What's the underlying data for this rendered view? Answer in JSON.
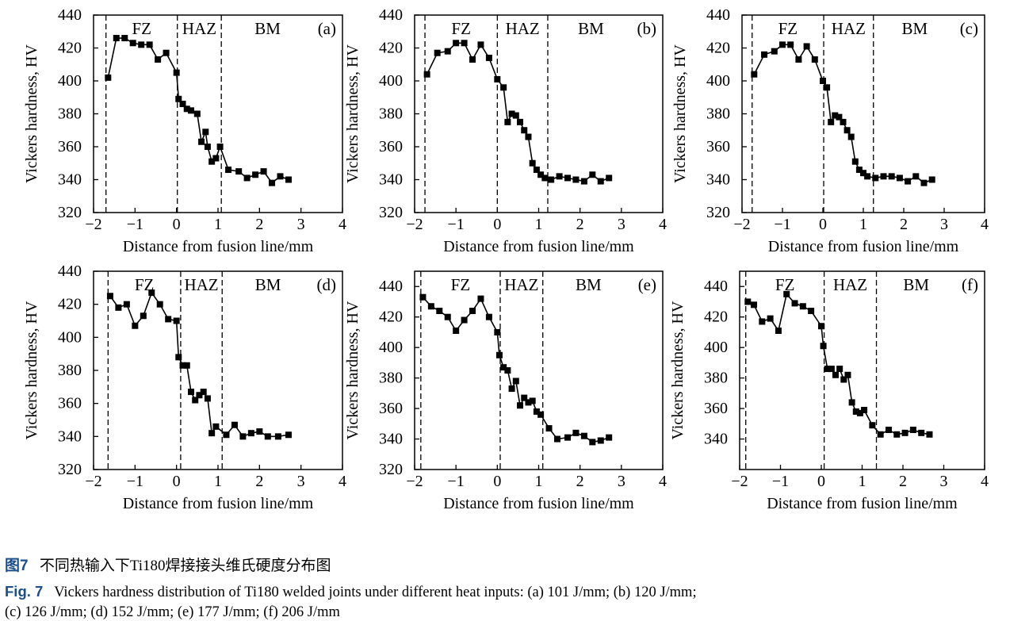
{
  "chart_data": [
    {
      "type": "line",
      "panel_label": "(a)",
      "xlabel": "Distance from fusion line/mm",
      "ylabel": "Vickers hardness, HV",
      "xlim": [
        -2,
        4
      ],
      "ylim": [
        320,
        440
      ],
      "xticks": [
        -2,
        -1,
        0,
        1,
        2,
        3,
        4
      ],
      "yticks": [
        320,
        340,
        360,
        380,
        400,
        420,
        440
      ],
      "regions": [
        "FZ",
        "HAZ",
        "BM"
      ],
      "boundaries": [
        -1.7,
        0.02,
        1.08
      ],
      "x": [
        -1.65,
        -1.45,
        -1.25,
        -1.05,
        -0.85,
        -0.65,
        -0.45,
        -0.25,
        0.0,
        0.05,
        0.15,
        0.25,
        0.35,
        0.5,
        0.6,
        0.7,
        0.75,
        0.85,
        0.95,
        1.05,
        1.25,
        1.5,
        1.7,
        1.9,
        2.1,
        2.3,
        2.5,
        2.7
      ],
      "y": [
        402,
        426,
        426,
        423,
        422,
        422,
        413,
        417,
        405,
        389,
        386,
        383,
        382,
        380,
        363,
        369,
        360,
        351,
        353,
        360,
        346,
        345,
        341,
        343,
        345,
        338,
        342,
        340
      ]
    },
    {
      "type": "line",
      "panel_label": "(b)",
      "xlabel": "Distance from fusion line/mm",
      "ylabel": "Vickers hardness, HV",
      "xlim": [
        -2,
        4
      ],
      "ylim": [
        320,
        440
      ],
      "xticks": [
        -2,
        -1,
        0,
        1,
        2,
        3,
        4
      ],
      "yticks": [
        320,
        340,
        360,
        380,
        400,
        420,
        440
      ],
      "regions": [
        "FZ",
        "HAZ",
        "BM"
      ],
      "boundaries": [
        -1.75,
        0,
        1.22
      ],
      "x": [
        -1.7,
        -1.45,
        -1.2,
        -1.0,
        -0.8,
        -0.6,
        -0.4,
        -0.2,
        0,
        0.15,
        0.25,
        0.35,
        0.45,
        0.55,
        0.65,
        0.75,
        0.85,
        0.95,
        1.05,
        1.15,
        1.3,
        1.5,
        1.7,
        1.9,
        2.1,
        2.3,
        2.5,
        2.7
      ],
      "y": [
        404,
        417,
        418,
        423,
        423,
        413,
        422,
        414,
        401,
        396,
        375,
        380,
        379,
        375,
        370,
        366,
        350,
        346,
        343,
        341,
        340,
        342,
        341,
        340,
        339,
        343,
        339,
        341
      ]
    },
    {
      "type": "line",
      "panel_label": "(c)",
      "xlabel": "Distance from fusion line/mm",
      "ylabel": "Vickers hardness, HV",
      "xlim": [
        -2,
        4
      ],
      "ylim": [
        320,
        440
      ],
      "xticks": [
        -2,
        -1,
        0,
        1,
        2,
        3,
        4
      ],
      "yticks": [
        320,
        340,
        360,
        380,
        400,
        420,
        440
      ],
      "regions": [
        "FZ",
        "HAZ",
        "BM"
      ],
      "boundaries": [
        -1.75,
        0.02,
        1.25
      ],
      "x": [
        -1.7,
        -1.45,
        -1.2,
        -1.0,
        -0.8,
        -0.6,
        -0.4,
        -0.2,
        0,
        0.1,
        0.2,
        0.3,
        0.4,
        0.5,
        0.6,
        0.7,
        0.8,
        0.9,
        1.0,
        1.1,
        1.3,
        1.5,
        1.7,
        1.9,
        2.1,
        2.3,
        2.5,
        2.7
      ],
      "y": [
        404,
        416,
        418,
        422,
        422,
        413,
        421,
        413,
        400,
        396,
        375,
        379,
        378,
        375,
        370,
        366,
        351,
        346,
        344,
        342,
        341,
        342,
        342,
        341,
        339,
        342,
        338,
        340
      ]
    },
    {
      "type": "line",
      "panel_label": "(d)",
      "xlabel": "Distance from fusion line/mm",
      "ylabel": "Vickers hardness, HV",
      "xlim": [
        -2,
        4
      ],
      "ylim": [
        320,
        440
      ],
      "xticks": [
        -2,
        -1,
        0,
        1,
        2,
        3,
        4
      ],
      "yticks": [
        320,
        340,
        360,
        380,
        400,
        420,
        440
      ],
      "regions": [
        "FZ",
        "HAZ",
        "BM"
      ],
      "boundaries": [
        -1.65,
        0.1,
        1.1
      ],
      "x": [
        -1.6,
        -1.4,
        -1.2,
        -1.0,
        -0.8,
        -0.6,
        -0.4,
        -0.2,
        0,
        0.05,
        0.15,
        0.25,
        0.35,
        0.45,
        0.55,
        0.65,
        0.75,
        0.85,
        0.95,
        1.2,
        1.4,
        1.6,
        1.8,
        2.0,
        2.2,
        2.45,
        2.7
      ],
      "y": [
        425,
        418,
        420,
        407,
        413,
        427,
        420,
        411,
        410,
        388,
        383,
        383,
        367,
        362,
        365,
        367,
        363,
        342,
        346,
        341,
        347,
        340,
        342,
        343,
        340,
        340,
        341
      ]
    },
    {
      "type": "line",
      "panel_label": "(e)",
      "xlabel": "Distance from fusion line/mm",
      "ylabel": "Vickers hardness, HV",
      "xlim": [
        -2,
        4
      ],
      "ylim": [
        320,
        450
      ],
      "xticks": [
        -2,
        -1,
        0,
        1,
        2,
        3,
        4
      ],
      "yticks": [
        320,
        340,
        360,
        380,
        400,
        420,
        440
      ],
      "regions": [
        "FZ",
        "HAZ",
        "BM"
      ],
      "boundaries": [
        -1.85,
        0.07,
        1.1
      ],
      "x": [
        -1.8,
        -1.6,
        -1.4,
        -1.2,
        -1.0,
        -0.8,
        -0.6,
        -0.4,
        -0.2,
        0,
        0.05,
        0.15,
        0.25,
        0.35,
        0.45,
        0.55,
        0.65,
        0.75,
        0.85,
        0.95,
        1.05,
        1.25,
        1.45,
        1.7,
        1.9,
        2.1,
        2.3,
        2.5,
        2.7
      ],
      "y": [
        433,
        427,
        424,
        420,
        411,
        418,
        424,
        432,
        420,
        410,
        395,
        387,
        385,
        373,
        378,
        362,
        367,
        364,
        365,
        358,
        356,
        347,
        340,
        341,
        344,
        342,
        338,
        339,
        341
      ]
    },
    {
      "type": "line",
      "panel_label": "(f)",
      "xlabel": "Distance from fusion line/mm",
      "ylabel": "Vickers hardness, HV",
      "xlim": [
        -2,
        4
      ],
      "ylim": [
        320,
        450
      ],
      "xticks": [
        -2,
        -1,
        0,
        1,
        2,
        3,
        4
      ],
      "yticks": [
        340,
        360,
        380,
        400,
        420,
        440
      ],
      "regions": [
        "FZ",
        "HAZ",
        "BM"
      ],
      "boundaries": [
        -1.85,
        0.07,
        1.35
      ],
      "x": [
        -1.8,
        -1.65,
        -1.45,
        -1.25,
        -1.05,
        -0.85,
        -0.65,
        -0.45,
        -0.25,
        0,
        0.05,
        0.15,
        0.25,
        0.35,
        0.45,
        0.55,
        0.65,
        0.75,
        0.85,
        0.95,
        1.05,
        1.25,
        1.45,
        1.65,
        1.85,
        2.05,
        2.25,
        2.45,
        2.65
      ],
      "y": [
        430,
        428,
        417,
        419,
        411,
        435,
        429,
        427,
        424,
        414,
        401,
        386,
        386,
        382,
        386,
        379,
        382,
        364,
        358,
        357,
        359,
        349,
        343,
        346,
        343,
        344,
        346,
        344,
        343
      ]
    }
  ],
  "caption": {
    "cn_label": "图7",
    "cn_text": "不同热输入下Ti180焊接接头维氏硬度分布图",
    "en_label": "Fig. 7",
    "en_text1": "Vickers hardness distribution of Ti180 welded joints under different heat inputs: (a) 101 J/mm; (b) 120 J/mm;",
    "en_text2": "(c) 126 J/mm; (d) 152 J/mm; (e) 177 J/mm; (f) 206 J/mm"
  }
}
